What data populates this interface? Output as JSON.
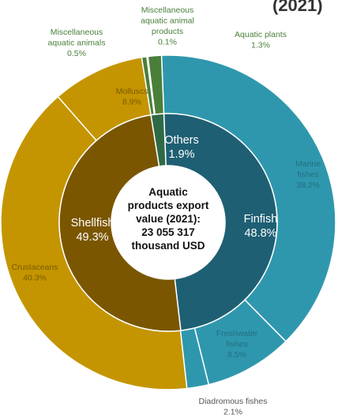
{
  "chart_data": {
    "type": "pie",
    "variant": "nested-donut",
    "center_label": [
      "Aquatic",
      "products export",
      "value (2021):",
      "23 055 317",
      "thousand USD"
    ],
    "inner_ring": [
      {
        "name": "Finfish",
        "value": 48.8,
        "label": "48.8%",
        "color": "#1f5f73"
      },
      {
        "name": "Shellfish",
        "value": 49.3,
        "label": "49.3%",
        "color": "#7a5600"
      },
      {
        "name": "Others",
        "value": 1.9,
        "label": "1.9%",
        "color": "#2f6a46"
      }
    ],
    "outer_ring": [
      {
        "name": "Marine fishes",
        "value": 38.2,
        "label": "38.2%",
        "color": "#2f97ad",
        "text_color": "#236f81"
      },
      {
        "name": "Freshwater fishes",
        "value": 8.5,
        "label": "8.5%",
        "color": "#2f97ad",
        "text_color": "#236f81"
      },
      {
        "name": "Diadromous fishes",
        "value": 2.1,
        "label": "2.1%",
        "color": "#2f97ad",
        "text_color": "#555555"
      },
      {
        "name": "Crustaceans",
        "value": 40.3,
        "label": "40.3%",
        "color": "#c49500",
        "text_color": "#7a5a00"
      },
      {
        "name": "Molluscs",
        "value": 8.9,
        "label": "8.9%",
        "color": "#c49500",
        "text_color": "#7a5a00"
      },
      {
        "name": "Miscellaneous aquatic animals",
        "value": 0.5,
        "label": "0.5%",
        "color": "#4a7f3a",
        "text_color": "#4a7f3a"
      },
      {
        "name": "Miscellaneous aquatic animal products",
        "value": 0.1,
        "label": "0.1%",
        "color": "#4a7f3a",
        "text_color": "#4a7f3a"
      },
      {
        "name": "Aquatic plants",
        "value": 1.3,
        "label": "1.3%",
        "color": "#4a7f3a",
        "text_color": "#4a7f3a"
      }
    ],
    "top_title_fragment": "(2021)"
  }
}
